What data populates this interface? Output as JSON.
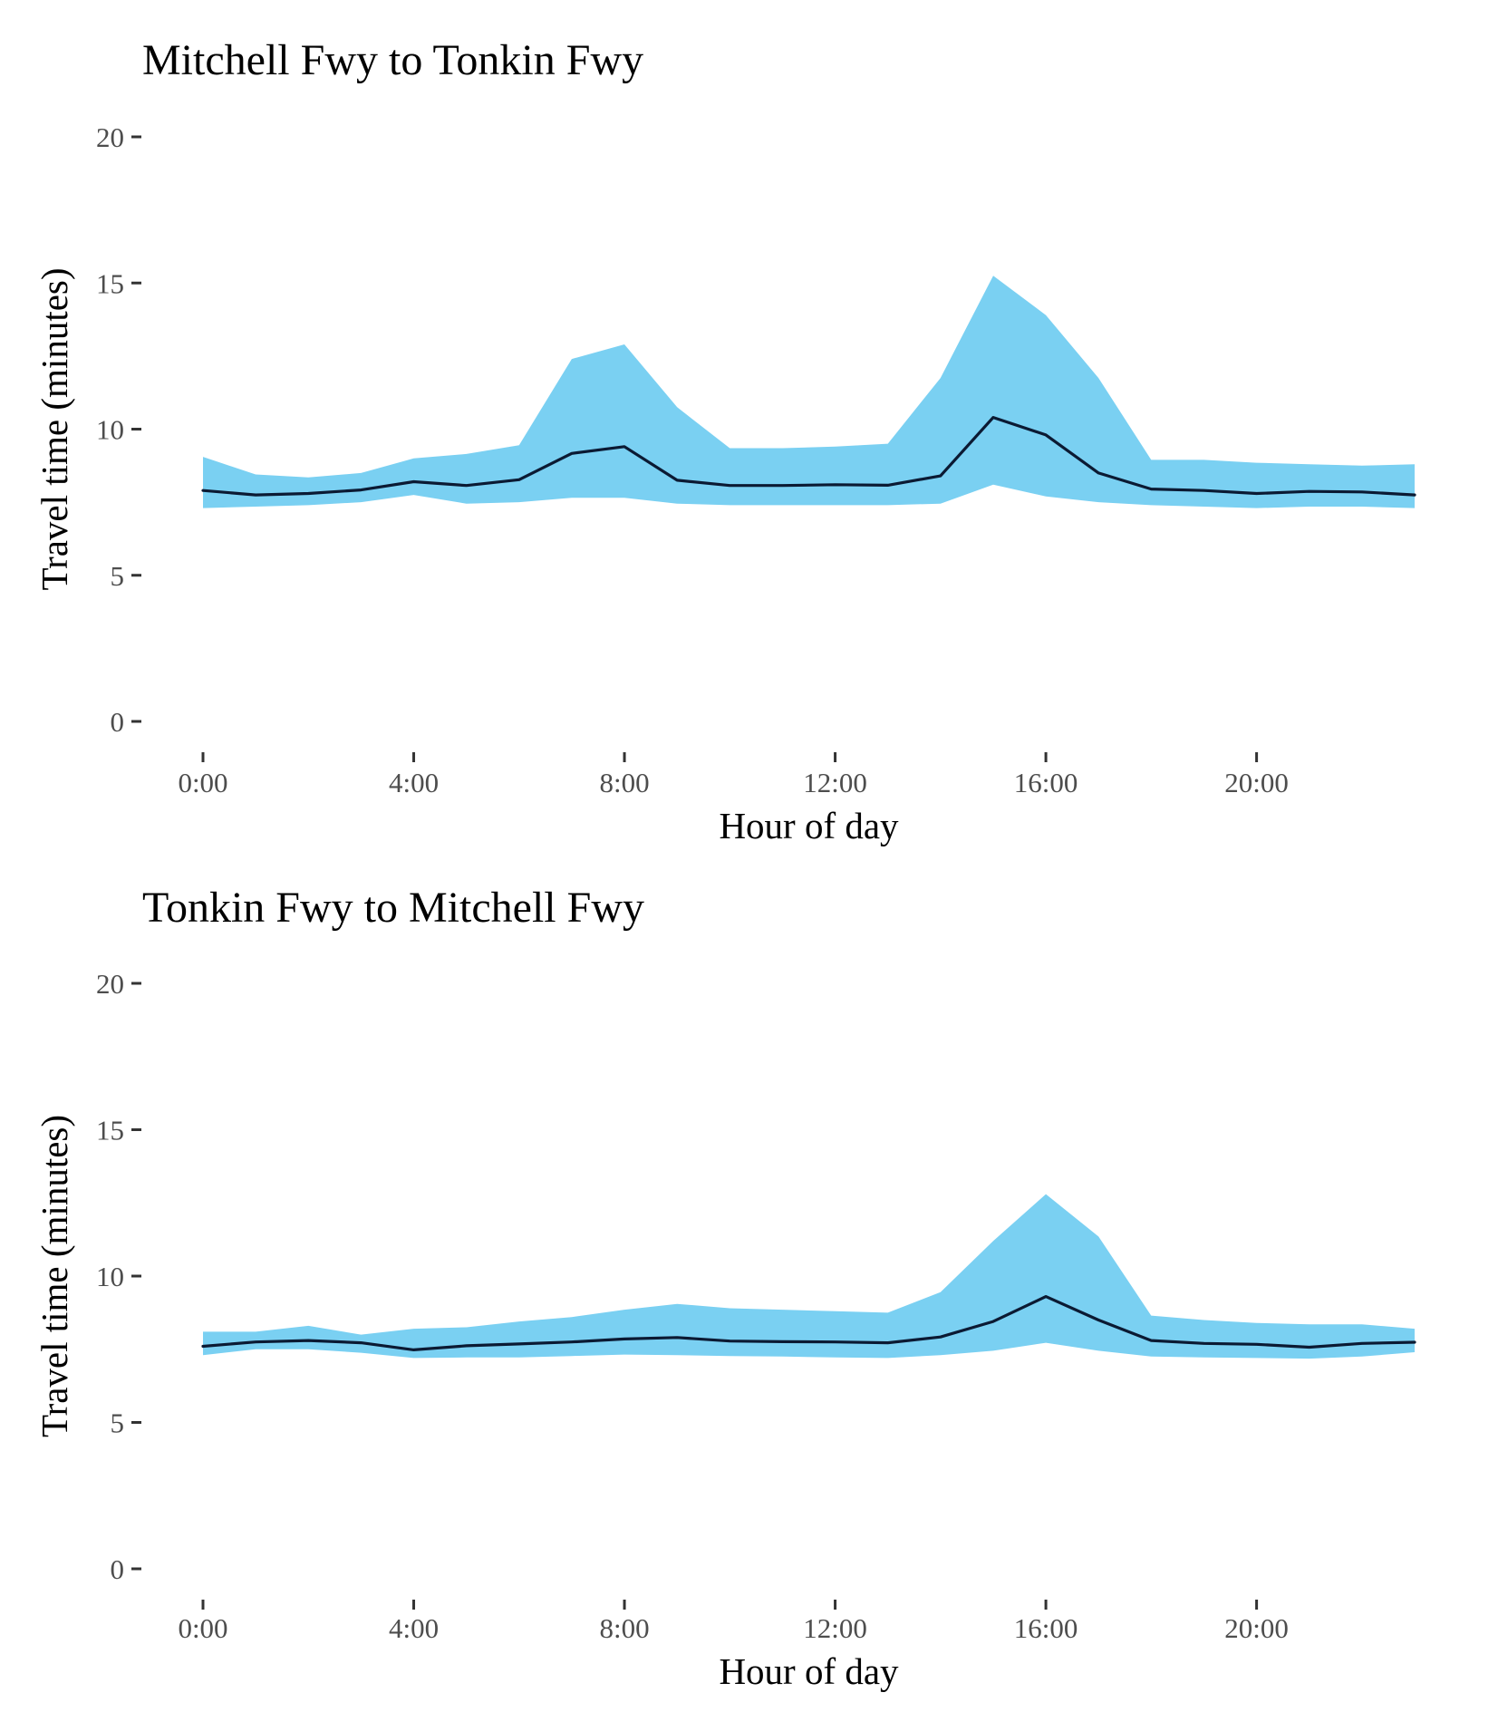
{
  "chart_data": [
    {
      "type": "area",
      "title": "Mitchell Fwy to Tonkin Fwy",
      "xlabel": "Hour of day",
      "ylabel": "Travel time (minutes)",
      "ylim": [
        0,
        20
      ],
      "xlim": [
        0,
        23
      ],
      "grid": false,
      "x_ticks": [
        0,
        4,
        8,
        12,
        16,
        20
      ],
      "x_tick_labels": [
        "0:00",
        "4:00",
        "8:00",
        "12:00",
        "16:00",
        "20:00"
      ],
      "y_ticks": [
        0,
        5,
        10,
        15,
        20
      ],
      "y_tick_labels": [
        "0",
        "5",
        "10",
        "15",
        "20"
      ],
      "x": [
        0,
        1,
        2,
        3,
        4,
        5,
        6,
        7,
        8,
        9,
        10,
        11,
        12,
        13,
        14,
        15,
        16,
        17,
        18,
        19,
        20,
        21,
        22,
        23
      ],
      "series": [
        {
          "kind": "line",
          "color": "#0b1a33",
          "values": [
            7.9,
            7.75,
            7.8,
            7.92,
            8.2,
            8.07,
            8.27,
            9.17,
            9.4,
            8.25,
            8.07,
            8.07,
            8.1,
            8.08,
            8.4,
            10.4,
            9.8,
            8.5,
            7.95,
            7.9,
            7.8,
            7.87,
            7.85,
            7.75
          ]
        },
        {
          "kind": "band",
          "color": "#7ad0f2",
          "lower": [
            7.3,
            7.35,
            7.4,
            7.5,
            7.75,
            7.45,
            7.5,
            7.65,
            7.65,
            7.45,
            7.4,
            7.4,
            7.4,
            7.4,
            7.45,
            8.1,
            7.7,
            7.5,
            7.4,
            7.35,
            7.3,
            7.35,
            7.35,
            7.3
          ],
          "upper": [
            9.05,
            8.45,
            8.35,
            8.5,
            9.0,
            9.15,
            9.45,
            12.4,
            12.9,
            10.75,
            9.35,
            9.35,
            9.4,
            9.5,
            11.75,
            15.25,
            13.9,
            11.75,
            8.95,
            8.95,
            8.85,
            8.8,
            8.75,
            8.8
          ]
        }
      ]
    },
    {
      "type": "area",
      "title": "Tonkin Fwy to Mitchell Fwy",
      "xlabel": "Hour of day",
      "ylabel": "Travel time (minutes)",
      "ylim": [
        0,
        20
      ],
      "xlim": [
        0,
        23
      ],
      "grid": false,
      "x_ticks": [
        0,
        4,
        8,
        12,
        16,
        20
      ],
      "x_tick_labels": [
        "0:00",
        "4:00",
        "8:00",
        "12:00",
        "16:00",
        "20:00"
      ],
      "y_ticks": [
        0,
        5,
        10,
        15,
        20
      ],
      "y_tick_labels": [
        "0",
        "5",
        "10",
        "15",
        "20"
      ],
      "x": [
        0,
        1,
        2,
        3,
        4,
        5,
        6,
        7,
        8,
        9,
        10,
        11,
        12,
        13,
        14,
        15,
        16,
        17,
        18,
        19,
        20,
        21,
        22,
        23
      ],
      "series": [
        {
          "kind": "line",
          "color": "#0b1a33",
          "values": [
            7.6,
            7.75,
            7.8,
            7.72,
            7.48,
            7.62,
            7.68,
            7.75,
            7.85,
            7.9,
            7.78,
            7.76,
            7.75,
            7.72,
            7.92,
            8.45,
            9.3,
            8.5,
            7.8,
            7.7,
            7.67,
            7.57,
            7.7,
            7.74
          ]
        },
        {
          "kind": "band",
          "color": "#7ad0f2",
          "lower": [
            7.3,
            7.5,
            7.5,
            7.38,
            7.2,
            7.22,
            7.22,
            7.27,
            7.32,
            7.3,
            7.27,
            7.25,
            7.22,
            7.2,
            7.3,
            7.45,
            7.72,
            7.45,
            7.25,
            7.22,
            7.2,
            7.18,
            7.25,
            7.4
          ],
          "upper": [
            8.1,
            8.1,
            8.3,
            8.0,
            8.2,
            8.25,
            8.45,
            8.6,
            8.85,
            9.05,
            8.9,
            8.85,
            8.8,
            8.75,
            9.45,
            11.2,
            12.8,
            11.35,
            8.65,
            8.5,
            8.4,
            8.35,
            8.35,
            8.2
          ]
        }
      ]
    }
  ]
}
